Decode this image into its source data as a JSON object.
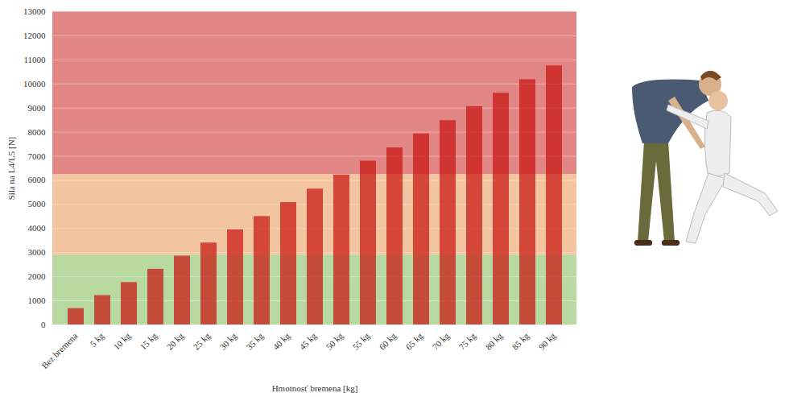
{
  "chart_data": {
    "type": "bar",
    "x_label": "Hmotnosť bremena [kg]",
    "y_label": "Sila na L4/L5 [N]",
    "categories": [
      "Bez bremena",
      "5 kg",
      "10 kg",
      "15 kg",
      "20 kg",
      "25 kg",
      "30 kg",
      "35 kg",
      "40 kg",
      "45 kg",
      "50 kg",
      "55 kg",
      "60 kg",
      "65 kg",
      "70 kg",
      "75 kg",
      "80 kg",
      "85 kg",
      "90 kg"
    ],
    "values": [
      680,
      1220,
      1760,
      2310,
      2860,
      3400,
      3950,
      4500,
      5080,
      5640,
      6220,
      6800,
      7350,
      7930,
      8480,
      9060,
      9620,
      10180,
      10750
    ],
    "color": "#c8150f",
    "ylim": [
      0,
      13000
    ],
    "yticks": [
      0,
      1000,
      2000,
      3000,
      4000,
      5000,
      6000,
      7000,
      8000,
      9000,
      10000,
      11000,
      12000,
      13000
    ],
    "grid": true,
    "zones": [
      {
        "from": 0,
        "to": 2900,
        "color": "#b9d9a3"
      },
      {
        "from": 2900,
        "to": 6250,
        "color": "#f3c4a0"
      },
      {
        "from": 6250,
        "to": 13000,
        "color": "#e28585"
      }
    ]
  }
}
